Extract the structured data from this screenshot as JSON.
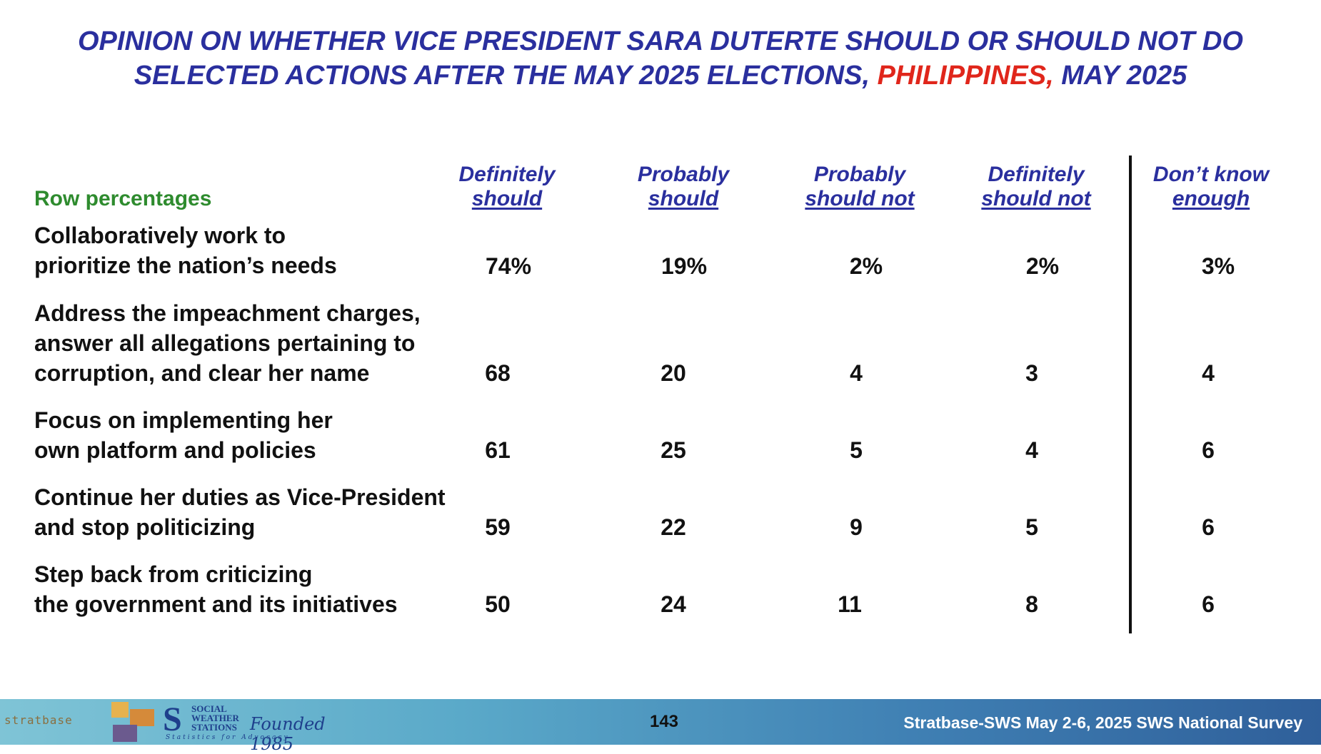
{
  "title": {
    "line1": "OPINION ON WHETHER VICE PRESIDENT SARA DUTERTE SHOULD OR SHOULD NOT DO",
    "line2_start": "SELECTED ACTIONS AFTER THE MAY 2025 ELECTIONS, ",
    "line2_highlight": "PHILIPPINES,",
    "line2_end": " MAY 2025"
  },
  "colors": {
    "title": "#2a2f9e",
    "highlight": "#e0261b",
    "row_pct_label": "#2e8b2e",
    "text": "#111111"
  },
  "chart_data": {
    "type": "table",
    "row_header": "Row percentages",
    "columns": [
      {
        "line1": "Definitely",
        "line2": "should"
      },
      {
        "line1": "Probably",
        "line2": "should"
      },
      {
        "line1": "Probably",
        "line2": "should not"
      },
      {
        "line1": "Definitely",
        "line2": "should not"
      },
      {
        "line1": "Don’t know",
        "line2": "enough"
      }
    ],
    "rows": [
      {
        "label": [
          "Collaboratively work to",
          "prioritize the nation’s needs"
        ],
        "cells": [
          "74%",
          "19%",
          "2%",
          "2%",
          "3%"
        ]
      },
      {
        "label": [
          "Address the impeachment charges,",
          "answer all allegations pertaining to",
          "corruption, and clear her name"
        ],
        "cells": [
          "68",
          "20",
          "4",
          "3",
          "4"
        ]
      },
      {
        "label": [
          "Focus on implementing her",
          "own platform and policies"
        ],
        "cells": [
          "61",
          "25",
          "5",
          "4",
          "6"
        ]
      },
      {
        "label": [
          "Continue her duties as Vice-President",
          "and stop politicizing"
        ],
        "cells": [
          "59",
          "22",
          "9",
          "5",
          "6"
        ]
      },
      {
        "label": [
          "Step back from criticizing",
          "the government and its initiatives"
        ],
        "cells": [
          "50",
          "24",
          "11",
          "8",
          "6"
        ]
      }
    ]
  },
  "footer": {
    "stratbase_logo_text": "stratbase",
    "sws_logo_lines": [
      "SOCIAL",
      "WEATHER",
      "STATIONS"
    ],
    "sws_founded": "Founded 1985",
    "sws_tagline": "Statistics for Advocacy",
    "page_number": "143",
    "source": "Stratbase-SWS May 2-6, 2025 SWS National Survey"
  }
}
